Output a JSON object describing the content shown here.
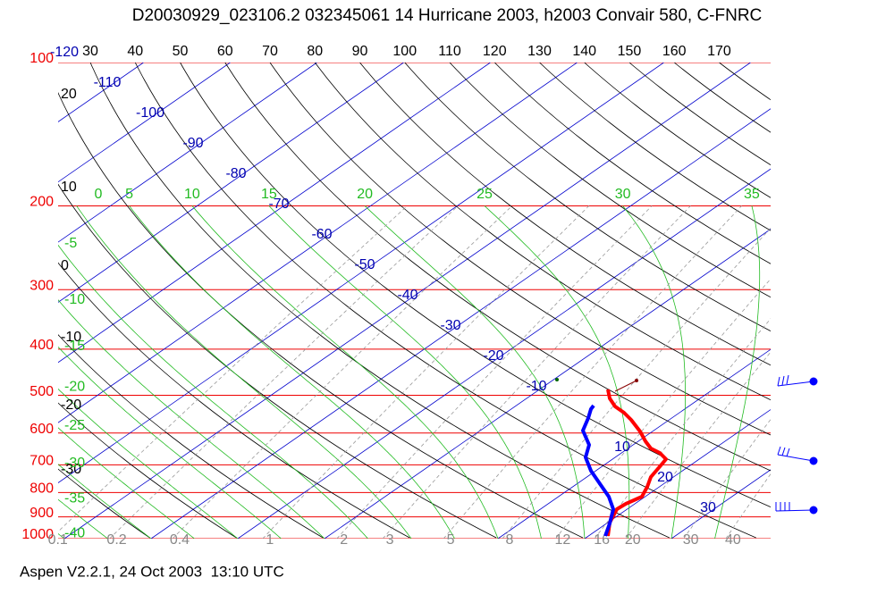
{
  "title": "D20030929_023106.2 032345061 14 Hurricane 2003, h2003 Convair 580, C-FNRC",
  "footer": "Aspen V2.2.1, 24 Oct 2003  13:10 UTC",
  "pressure_levels": [
    100,
    200,
    300,
    400,
    500,
    600,
    700,
    800,
    900,
    1000
  ],
  "isotherms": [
    -120,
    -110,
    -100,
    -90,
    -80,
    -70,
    -60,
    -50,
    -40,
    -30,
    -20,
    -10,
    10,
    20,
    30
  ],
  "dry_adiabats_top": [
    30,
    40,
    50,
    60,
    70,
    80,
    90,
    100,
    110,
    120,
    130,
    140,
    150,
    160,
    170
  ],
  "dry_adiabats_left": [
    20,
    10,
    0,
    -10,
    -20,
    -30
  ],
  "moist_adiabats_top": [
    0,
    5,
    10,
    15,
    20,
    25,
    30,
    35
  ],
  "moist_adiabats_left": [
    -5,
    -10,
    -15,
    -20,
    -25,
    -30,
    -35,
    -40
  ],
  "mixing_ratios": [
    0.1,
    0.2,
    0.4,
    1,
    2,
    3,
    5,
    8,
    12,
    16,
    20,
    30,
    40
  ]
}
